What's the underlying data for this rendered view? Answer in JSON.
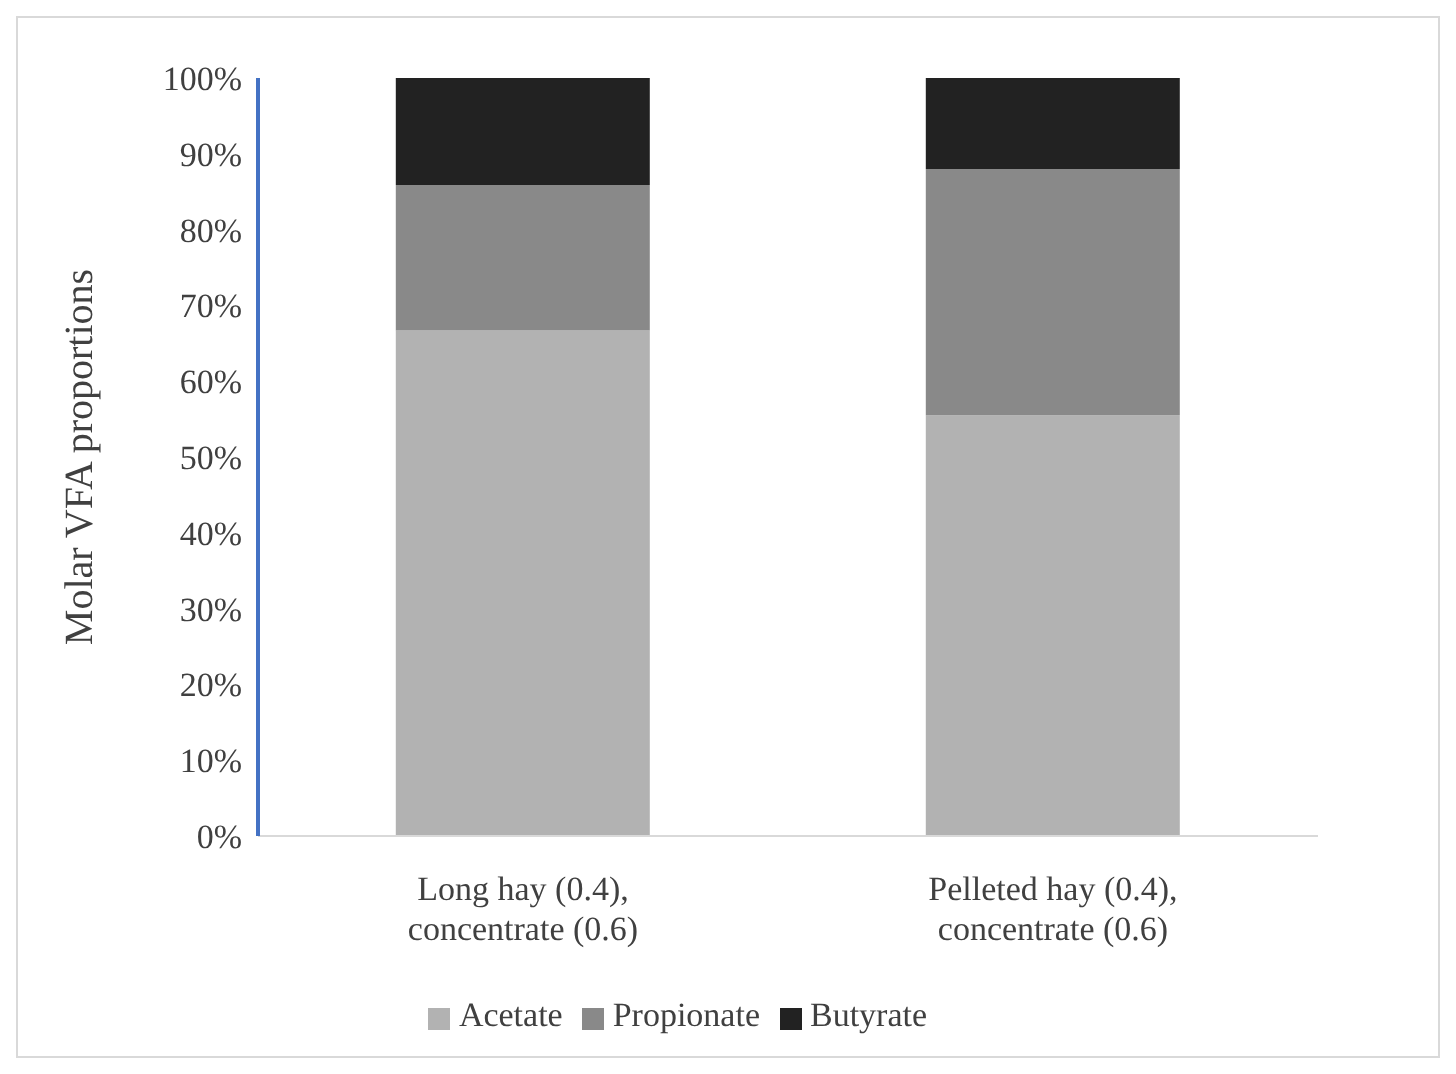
{
  "chart_data": {
    "type": "bar",
    "stacked": true,
    "ylabel": "Molar VFA proportions",
    "categories": [
      "Long hay (0.4), concentrate (0.6)",
      "Pelleted hay (0.4), concentrate (0.6)"
    ],
    "series": [
      {
        "name": "Acetate",
        "color": "#b2b2b2",
        "values": [
          66.7,
          55.5
        ]
      },
      {
        "name": "Propionate",
        "color": "#898989",
        "values": [
          19.2,
          32.5
        ]
      },
      {
        "name": "Butyrate",
        "color": "#222222",
        "values": [
          14.1,
          12.0
        ]
      }
    ],
    "ylim": [
      0,
      100
    ],
    "yticks": [
      {
        "value": 0,
        "label": "0%"
      },
      {
        "value": 10,
        "label": "10%"
      },
      {
        "value": 20,
        "label": "20%"
      },
      {
        "value": 30,
        "label": "30%"
      },
      {
        "value": 40,
        "label": "40%"
      },
      {
        "value": 50,
        "label": "50%"
      },
      {
        "value": 60,
        "label": "60%"
      },
      {
        "value": 70,
        "label": "70%"
      },
      {
        "value": 80,
        "label": "80%"
      },
      {
        "value": 90,
        "label": "90%"
      },
      {
        "value": 100,
        "label": "100%"
      }
    ],
    "grid": false,
    "legend": "bottom"
  }
}
